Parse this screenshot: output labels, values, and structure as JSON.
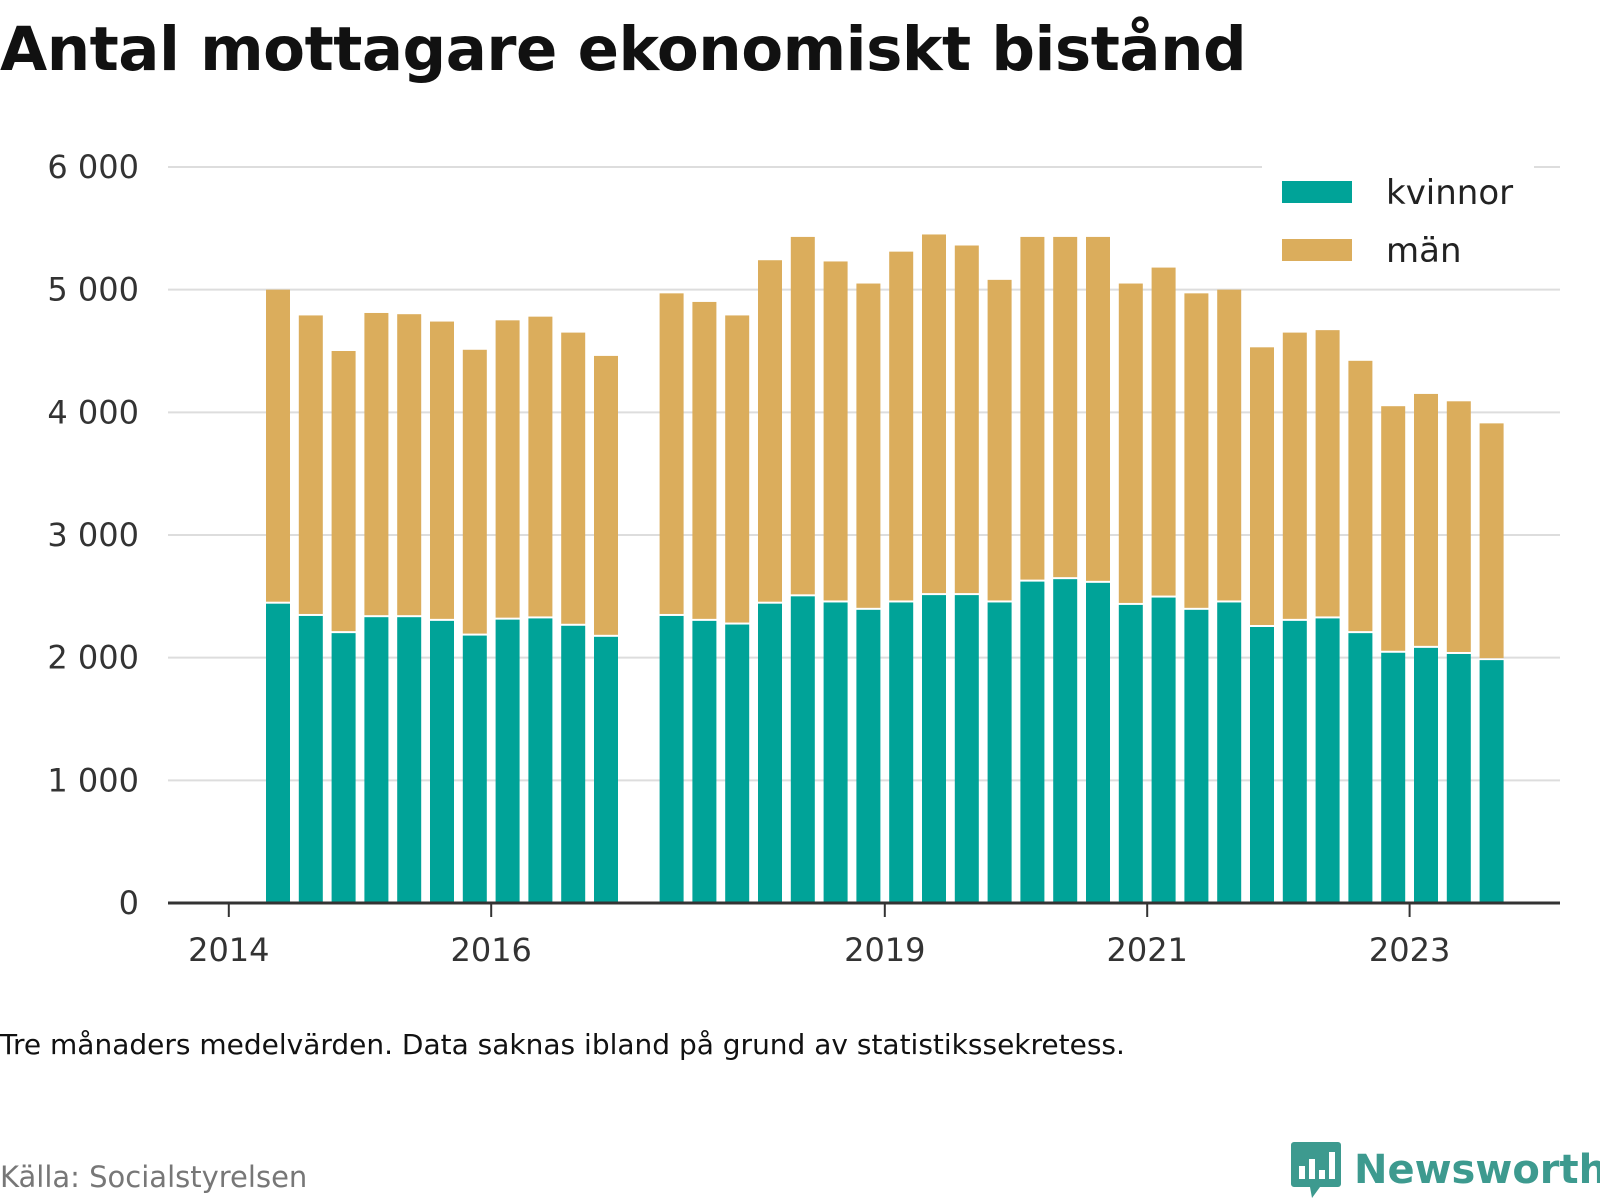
{
  "title": "Antal mottagare ekonomiskt bistånd",
  "footnote": "Tre månaders medelvärden. Data saknas ibland på grund av statistikssekretess.",
  "source": "Källa: Socialstyrelsen",
  "brand": {
    "name": "Newsworthy",
    "icon": "newsworthy-logo-icon"
  },
  "colors": {
    "kvinnor": "#00a398",
    "man": "#dbad5c",
    "grid": "#dddddd",
    "axis": "#333333"
  },
  "chart_data": {
    "type": "bar",
    "stacked": true,
    "ylim": [
      0,
      6000
    ],
    "yticks": [
      {
        "value": 0,
        "label": "0"
      },
      {
        "value": 1000,
        "label": "1 000"
      },
      {
        "value": 2000,
        "label": "2 000"
      },
      {
        "value": 3000,
        "label": "3 000"
      },
      {
        "value": 4000,
        "label": "4 000"
      },
      {
        "value": 5000,
        "label": "5 000"
      },
      {
        "value": 6000,
        "label": "6 000"
      }
    ],
    "xticks": [
      {
        "index": -1,
        "label": "2014"
      },
      {
        "index": 7,
        "label": "2016"
      },
      {
        "index": 19,
        "label": "2019"
      },
      {
        "index": 27,
        "label": "2021"
      },
      {
        "index": 35,
        "label": "2023"
      }
    ],
    "categories_count": 39,
    "legend_position": "top-right",
    "grid": true,
    "series": [
      {
        "name": "kvinnor",
        "values": [
          2440,
          2340,
          2200,
          2330,
          2330,
          2300,
          2180,
          2310,
          2320,
          2260,
          2170,
          null,
          2340,
          2300,
          2270,
          2440,
          2500,
          2450,
          2390,
          2450,
          2510,
          2510,
          2450,
          2620,
          2640,
          2610,
          2430,
          2490,
          2390,
          2450,
          2250,
          2300,
          2320,
          2200,
          2040,
          2080,
          2030,
          1980,
          null
        ]
      },
      {
        "name": "män",
        "values": [
          2560,
          2450,
          2300,
          2480,
          2470,
          2440,
          2330,
          2440,
          2460,
          2390,
          2290,
          null,
          2630,
          2600,
          2520,
          2800,
          2930,
          2780,
          2660,
          2860,
          2940,
          2850,
          2630,
          2810,
          2790,
          2820,
          2620,
          2690,
          2580,
          2550,
          2280,
          2350,
          2350,
          2220,
          2010,
          2070,
          2060,
          1930,
          null
        ]
      }
    ]
  }
}
